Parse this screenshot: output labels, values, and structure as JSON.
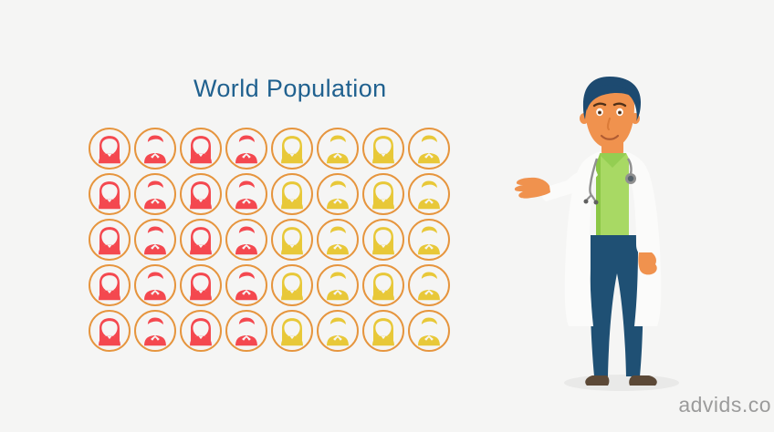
{
  "page": {
    "background": "#F5F5F4"
  },
  "title": {
    "text": "World Population",
    "color": "#20618F"
  },
  "watermark": {
    "text": "advids.co",
    "color": "#9B9B9B"
  },
  "chart_data": {
    "type": "pictograph",
    "title": "World Population",
    "icon_unit": "person",
    "rows": 5,
    "cols": 8,
    "total_icons": 40,
    "ring_color": "#E6953E",
    "icon_pattern_per_row": [
      "woman",
      "man",
      "woman",
      "man",
      "woman",
      "man",
      "woman",
      "man"
    ],
    "groups": [
      {
        "name": "red",
        "color": "#F4484F",
        "icons": 20,
        "share": 0.5,
        "columns": [
          1,
          2,
          3,
          4
        ]
      },
      {
        "name": "yellow",
        "color": "#E8C838",
        "icons": 20,
        "share": 0.5,
        "columns": [
          5,
          6,
          7,
          8
        ]
      }
    ],
    "legend_position": "none",
    "grid_lines": false
  },
  "illustration": {
    "name": "doctor-presenter",
    "pose": "standing, left arm extended presenting the pictograph",
    "palette": {
      "hair": "#1D4A70",
      "skin": "#F0924E",
      "shirt": "#A8D964",
      "shirt_dark": "#8BC746",
      "coat": "#FBFBFA",
      "pants": "#1F5074",
      "shoes": "#5C4937",
      "stethoscope": "#909090",
      "shadow": "#E9E9E8"
    }
  }
}
